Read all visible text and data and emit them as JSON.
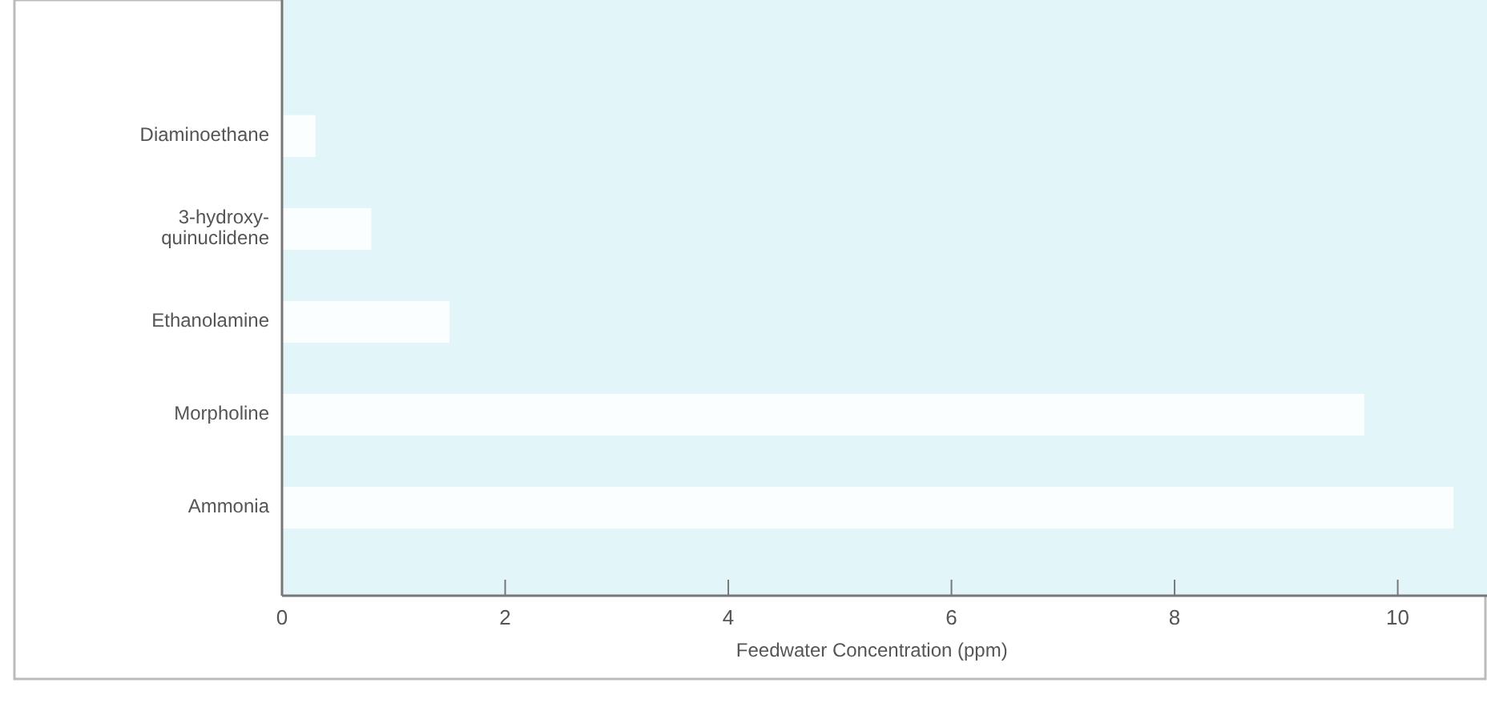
{
  "chart_data": {
    "type": "bar",
    "orientation": "horizontal",
    "xlabel": "Feedwater Concentration (ppm)",
    "categories": [
      "Diaminoethane",
      "3-hydroxy-\nquinuclidene",
      "Ethanolamine",
      "Morpholine",
      "Ammonia"
    ],
    "values": [
      0.3,
      0.8,
      1.5,
      9.7,
      10.5
    ],
    "color": "#fbfefe",
    "xlim": [
      0,
      10.8
    ],
    "xticks": [
      0,
      2,
      4,
      6,
      8,
      10
    ],
    "grid": false
  }
}
